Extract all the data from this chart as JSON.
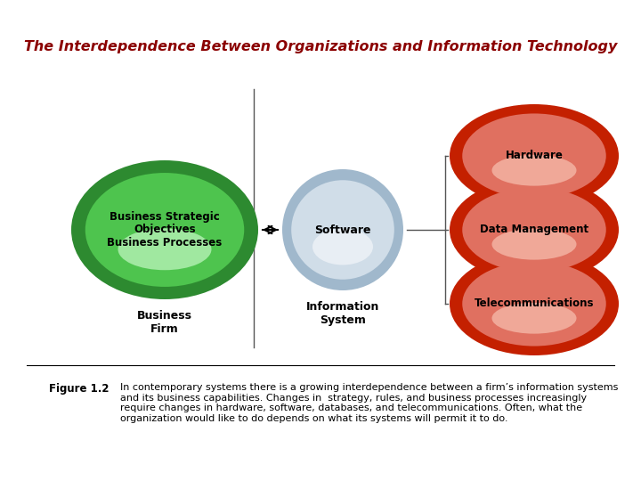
{
  "title": "The Interdependence Between Organizations and Information Technology",
  "title_color": "#8B0000",
  "title_fontsize": 11.5,
  "background_color": "#ffffff",
  "figure_caption_label": "Figure 1.2",
  "figure_caption_text": "In contemporary systems there is a growing interdependence between a firm’s information systems\nand its business capabilities. Changes in  strategy, rules, and business processes increasingly\nrequire changes in hardware, software, databases, and telecommunications. Often, what the\norganization would like to to depends on what its systems will permit it to do.",
  "green_outer_color": "#2d8a30",
  "green_inner_color": "#4ec44e",
  "green_highlight_color": "#a0e8a0",
  "blue_outer_color": "#a0b8cc",
  "blue_inner_color": "#d0dde8",
  "blue_highlight_color": "#e8eef4",
  "red_outer_color": "#c42000",
  "red_inner_color": "#e07060",
  "red_highlight_color": "#f0a898"
}
